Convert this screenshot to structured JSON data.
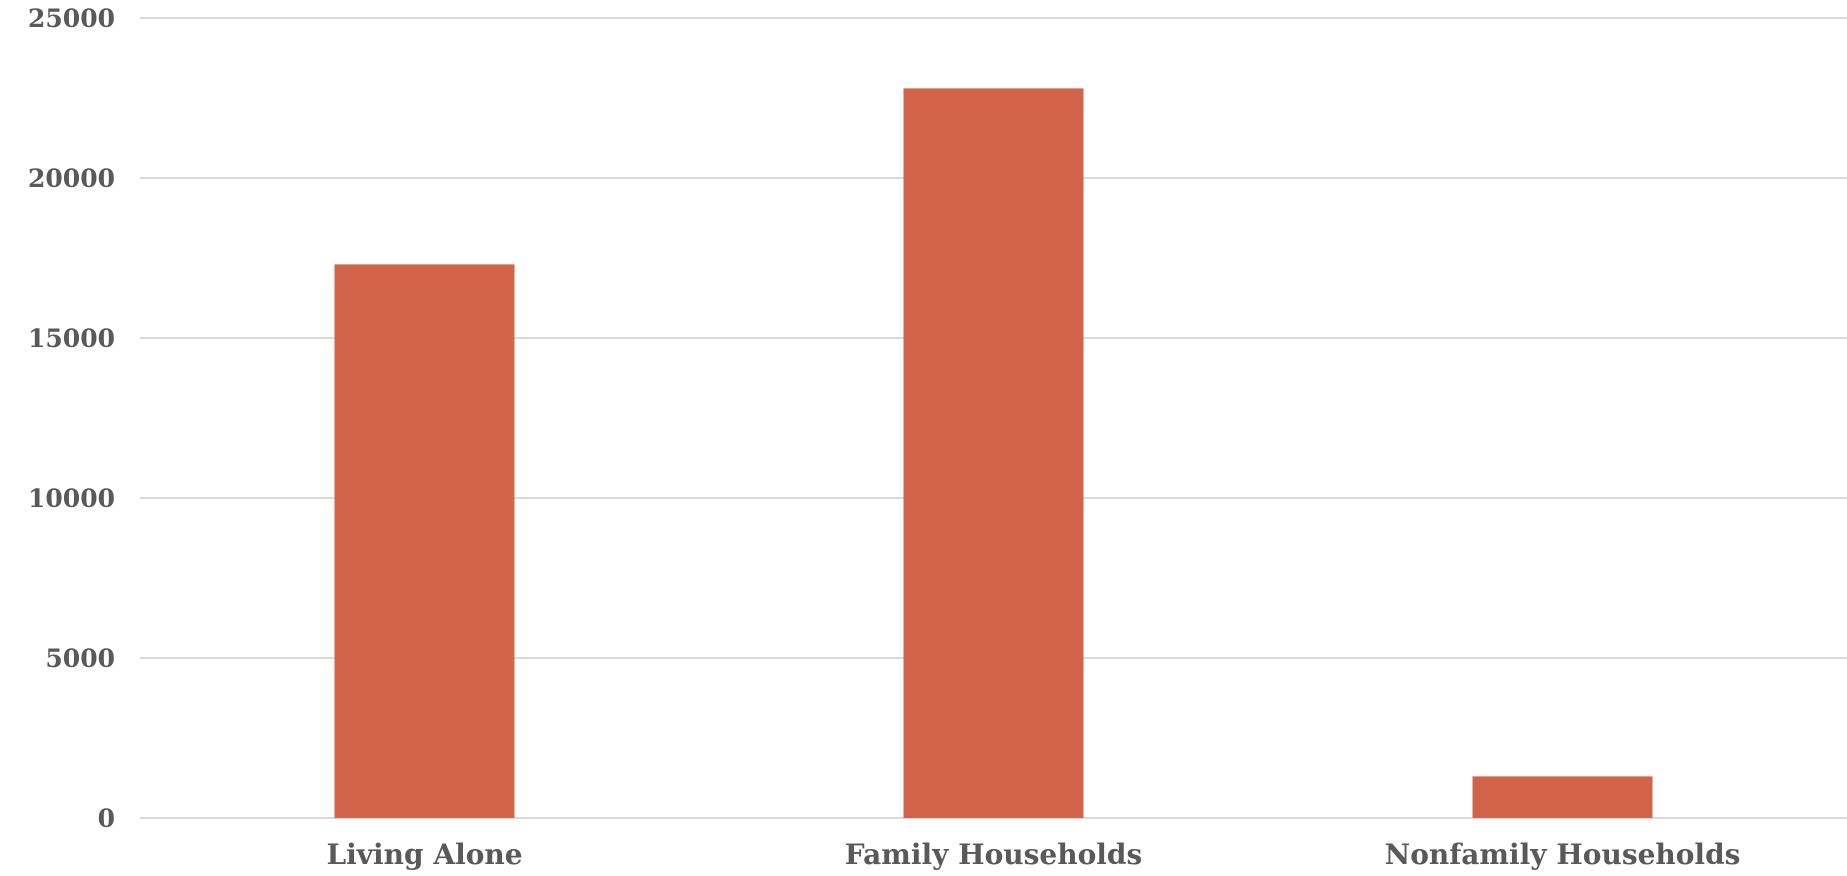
{
  "chart_data": {
    "type": "bar",
    "title": "",
    "xlabel": "",
    "ylabel": "",
    "categories": [
      "Living Alone",
      "Family Households",
      "Nonfamily Households"
    ],
    "values": [
      17300,
      22800,
      1300
    ],
    "ylim": [
      0,
      25000
    ],
    "yticks": [
      0,
      5000,
      10000,
      15000,
      20000,
      25000
    ],
    "grid": true,
    "legend": "none",
    "bar_color": "#D2644A",
    "grid_color": "#D9D9D9",
    "label_color": "#595959"
  }
}
